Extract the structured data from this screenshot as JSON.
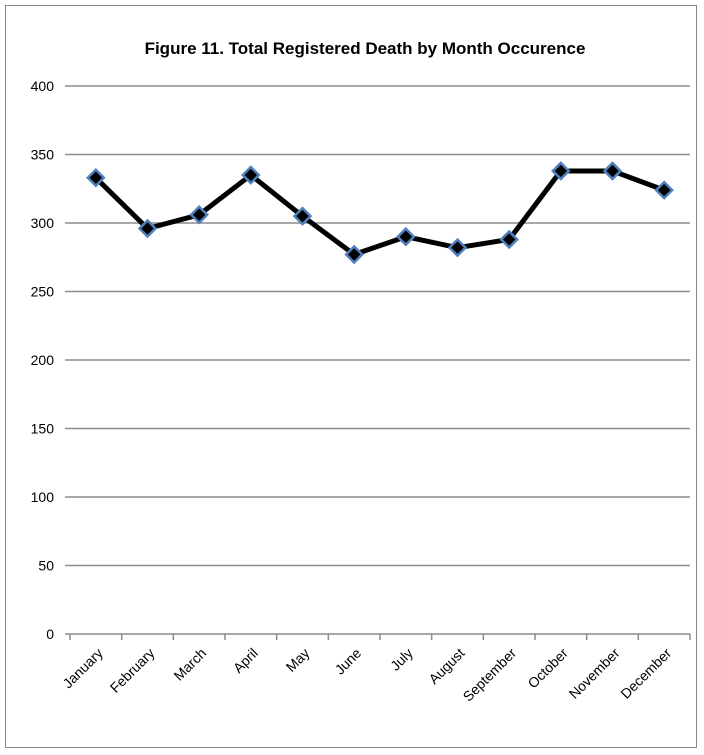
{
  "chart_data": {
    "type": "line",
    "title": "Figure 11.  Total Registered  Death  by Month  Occurence",
    "xlabel": "",
    "ylabel": "",
    "categories": [
      "January",
      "February",
      "March",
      "April",
      "May",
      "June",
      "July",
      "August",
      "September",
      "October",
      "November",
      "December"
    ],
    "series": [
      {
        "values": [
          333,
          296,
          306,
          335,
          305,
          277,
          290,
          282,
          288,
          338,
          338,
          324
        ]
      }
    ],
    "ylim": [
      0,
      400
    ],
    "yticks": [
      0,
      50,
      100,
      150,
      200,
      250,
      300,
      350,
      400
    ],
    "grid": true,
    "legend": "none",
    "line_color": "#000000",
    "marker": "diamond",
    "marker_fill": "#000000",
    "marker_edge": "#4f81bd"
  }
}
